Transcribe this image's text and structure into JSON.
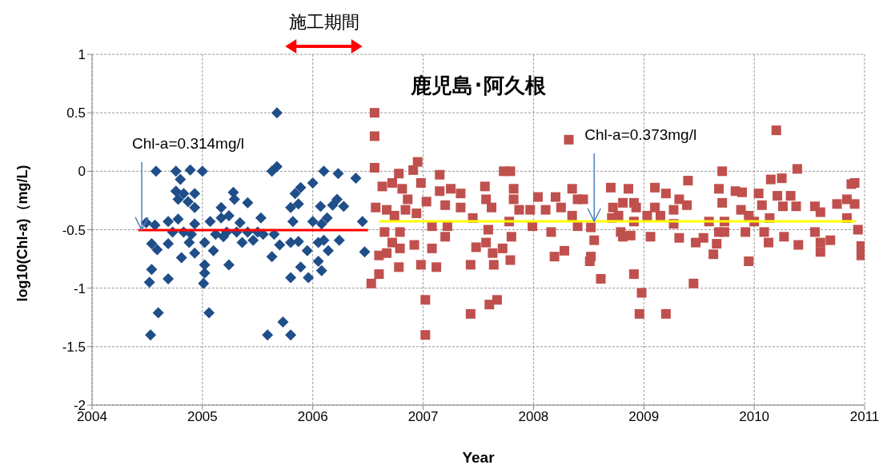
{
  "chart_data": {
    "type": "scatter",
    "title": "鹿児島･阿久根",
    "xlabel": "Year",
    "ylabel": "log10(Chl-a)（mg/L)",
    "xlim": [
      2004,
      2011
    ],
    "xticks": [
      2004,
      2005,
      2006,
      2007,
      2008,
      2009,
      2010,
      2011
    ],
    "ylim": [
      -2,
      1
    ],
    "yticks": [
      -2,
      -1.5,
      -1,
      -0.5,
      0,
      0.5,
      1
    ],
    "grid": true,
    "annotations": [
      "施工期間",
      {
        "text": "Chl-a=0.314mg/l",
        "x": 2004.45,
        "y": -0.503
      },
      {
        "text": "Chl-a=0.373mg/l",
        "x": 2008.55,
        "y": -0.428
      }
    ],
    "series": [
      {
        "type": "scatter",
        "color": "#1f4e89",
        "marker": "diamond",
        "x": [
          2005.675,
          2004.58,
          2004.76,
          2004.89,
          2005.0,
          2005.63,
          2005.675,
          2006.1,
          2006.23,
          2006.39,
          2004.8,
          2006.0,
          2005.89,
          2005.84,
          2005.28,
          2005.29,
          2005.41,
          2004.76,
          2004.83,
          2004.93,
          2004.78,
          2004.87,
          2004.93,
          2005.17,
          2005.53,
          2005.8,
          2005.87,
          2006.07,
          2006.18,
          2006.22,
          2006.28,
          2004.49,
          2004.57,
          2004.69,
          2004.78,
          2004.93,
          2005.07,
          2005.17,
          2005.24,
          2005.34,
          2006.45,
          2006.0,
          2006.08,
          2006.13,
          2005.82,
          2004.54,
          2004.59,
          2004.69,
          2004.81,
          2004.88,
          2004.93,
          2005.02,
          2005.1,
          2005.19,
          2005.24,
          2005.36,
          2005.46,
          2005.55,
          2005.63,
          2005.7,
          2005.8,
          2005.87,
          2005.95,
          2006.05,
          2006.1,
          2006.14,
          2006.24,
          2006.47,
          2005.02,
          2005.02,
          2004.54,
          2004.52,
          2004.69,
          2005.8,
          2005.89,
          2005.96,
          2006.08,
          2006.05,
          2005.01,
          2004.6,
          2005.06,
          2004.53,
          2005.59,
          2005.73,
          2005.8,
          2005.31,
          2005.41,
          2005.5,
          2005.65,
          2005.12,
          2005.22,
          2004.83,
          2004.9,
          2004.73
        ],
        "values": [
          0.5,
          0,
          0,
          0.01,
          0,
          0,
          0.04,
          0,
          -0.02,
          -0.06,
          -0.07,
          -0.1,
          -0.14,
          -0.19,
          -0.18,
          -0.24,
          -0.27,
          -0.17,
          -0.19,
          -0.19,
          -0.24,
          -0.26,
          -0.31,
          -0.31,
          -0.4,
          -0.31,
          -0.28,
          -0.3,
          -0.29,
          -0.24,
          -0.3,
          -0.44,
          -0.46,
          -0.43,
          -0.41,
          -0.45,
          -0.43,
          -0.4,
          -0.38,
          -0.44,
          -0.43,
          -0.43,
          -0.45,
          -0.4,
          -0.43,
          -0.62,
          -0.67,
          -0.62,
          -0.74,
          -0.61,
          -0.7,
          -0.61,
          -0.68,
          -0.56,
          -0.8,
          -0.61,
          -0.59,
          -0.54,
          -0.73,
          -0.63,
          -0.61,
          -0.6,
          -0.68,
          -0.61,
          -0.59,
          -0.68,
          -0.59,
          -0.69,
          -0.8,
          -0.87,
          -0.84,
          -0.95,
          -0.92,
          -0.91,
          -0.82,
          -0.91,
          -0.85,
          -0.77,
          -0.96,
          -1.21,
          -1.21,
          -1.4,
          -1.4,
          -1.29,
          -1.4,
          -0.52,
          -0.52,
          -0.52,
          -0.54,
          -0.54,
          -0.52,
          -0.52,
          -0.54,
          -0.52
        ]
      },
      {
        "type": "scatter",
        "color": "#c0504d",
        "marker": "square",
        "x": [
          2006.56,
          2006.56,
          2006.56,
          2006.53,
          2006.6,
          2006.6,
          2006.57,
          2006.63,
          2006.78,
          2006.95,
          2006.91,
          2006.72,
          2006.81,
          2006.86,
          2006.98,
          2007.03,
          2006.67,
          2006.74,
          2006.84,
          2006.94,
          2006.65,
          2006.79,
          2006.72,
          2006.79,
          2006.92,
          2006.67,
          2006.78,
          2006.98,
          2007.12,
          2007.02,
          2007.02,
          2007.15,
          2007.15,
          2007.25,
          2007.34,
          2007.34,
          2007.2,
          2007.08,
          2007.22,
          2007.08,
          2007.2,
          2007.45,
          2007.48,
          2007.43,
          2007.43,
          2007.6,
          2007.67,
          2007.56,
          2007.57,
          2007.62,
          2007.59,
          2007.57,
          2007.63,
          2007.64,
          2007.72,
          2007.73,
          2007.79,
          2007.82,
          2007.82,
          2007.87,
          2007.78,
          2007.8,
          2007.79,
          2007.97,
          2008.04,
          2007.99,
          2008.11,
          2008.2,
          2008.25,
          2008.35,
          2008.16,
          2008.19,
          2008.28,
          2008.4,
          2008.45,
          2008.35,
          2008.4,
          2008.32,
          2008.52,
          2008.55,
          2008.52,
          2008.51,
          2008.61,
          2008.7,
          2008.71,
          2008.79,
          2008.86,
          2008.91,
          2008.77,
          2008.91,
          2008.81,
          2008.88,
          2009.1,
          2009.2,
          2009.32,
          2009.1,
          2009.27,
          2009.39,
          2009.06,
          2009.32,
          2009.03,
          2009.15,
          2009.4,
          2008.91,
          2008.98,
          2008.96,
          2009.2,
          2009.45,
          2009.71,
          2009.68,
          2009.71,
          2009.83,
          2009.89,
          2009.88,
          2009.59,
          2009.68,
          2009.73,
          2009.47,
          2009.54,
          2009.63,
          2009.66,
          2009.73,
          2009.92,
          2009.95,
          2010.2,
          2010.39,
          2010.15,
          2010.25,
          2010.04,
          2010.07,
          2010.21,
          2010.33,
          2010.26,
          2010.38,
          2010.14,
          2010.09,
          2010.13,
          2010.27,
          2010.4,
          2010.55,
          2010.6,
          2010.75,
          2010.84,
          2010.91,
          2010.88,
          2010.91,
          2010.84,
          2010.55,
          2010.6,
          2010.69,
          2010.6,
          2010.94,
          2010.97,
          2010.97,
          2009.95,
          2010.0,
          2008.72,
          2008.81,
          2008.93,
          2009.27
        ],
        "values": [
          0.5,
          0.3,
          0.03,
          -0.96,
          -0.88,
          -0.72,
          -0.31,
          -0.13,
          -0.02,
          0.08,
          0.01,
          -0.1,
          -0.15,
          -0.24,
          -0.1,
          -0.26,
          -0.33,
          -0.38,
          -0.33,
          -0.36,
          -0.52,
          -0.52,
          -0.61,
          -0.66,
          -0.63,
          -0.7,
          -0.82,
          -0.8,
          -0.82,
          -1.1,
          -1.4,
          -0.03,
          -0.17,
          -0.15,
          -0.19,
          -0.31,
          -0.29,
          -0.47,
          -0.47,
          -0.66,
          -0.56,
          -0.4,
          -0.65,
          -0.8,
          -1.22,
          -1.14,
          -1.1,
          -0.13,
          -0.24,
          -0.31,
          -0.5,
          -0.61,
          -0.7,
          -0.8,
          -0.66,
          0,
          0,
          -0.15,
          -0.24,
          -0.33,
          -0.43,
          -0.56,
          -0.76,
          -0.33,
          -0.22,
          -0.47,
          -0.33,
          -0.22,
          -0.31,
          -0.15,
          -0.52,
          -0.73,
          -0.68,
          -0.24,
          -0.24,
          -0.38,
          -0.47,
          0.27,
          -0.48,
          -0.59,
          -0.73,
          -0.77,
          -0.92,
          -0.14,
          -0.4,
          -0.52,
          -0.15,
          -0.27,
          -0.38,
          -0.43,
          -0.56,
          -0.55,
          -0.14,
          -0.19,
          -0.24,
          -0.31,
          -0.33,
          -0.29,
          -0.56,
          -0.57,
          -0.38,
          -0.38,
          -0.08,
          -0.88,
          -1.04,
          -1.22,
          -1.22,
          -0.96,
          0,
          -0.15,
          -0.27,
          -0.17,
          -0.18,
          -0.33,
          -0.43,
          -0.52,
          -0.43,
          -0.61,
          -0.57,
          -0.71,
          -0.62,
          -0.52,
          -0.52,
          -0.77,
          0.35,
          0.02,
          -0.07,
          -0.06,
          -0.19,
          -0.29,
          -0.21,
          -0.21,
          -0.3,
          -0.3,
          -0.4,
          -0.52,
          -0.61,
          -0.56,
          -0.63,
          -0.3,
          -0.35,
          -0.28,
          -0.24,
          -0.1,
          -0.11,
          -0.28,
          -0.4,
          -0.52,
          -0.61,
          -0.59,
          -0.69,
          -0.5,
          -0.64,
          -0.72,
          -0.38,
          -0.43,
          -0.31,
          -0.27,
          -0.31,
          -0.45
        ]
      },
      {
        "type": "line",
        "color": "#ff0000",
        "marker": "none",
        "x": [
          2004.42,
          2006.5
        ],
        "values": [
          -0.503,
          -0.503
        ]
      },
      {
        "type": "line",
        "color": "#ffff00",
        "marker": "none",
        "x": [
          2006.6,
          2010.92
        ],
        "values": [
          -0.428,
          -0.428
        ]
      }
    ]
  }
}
